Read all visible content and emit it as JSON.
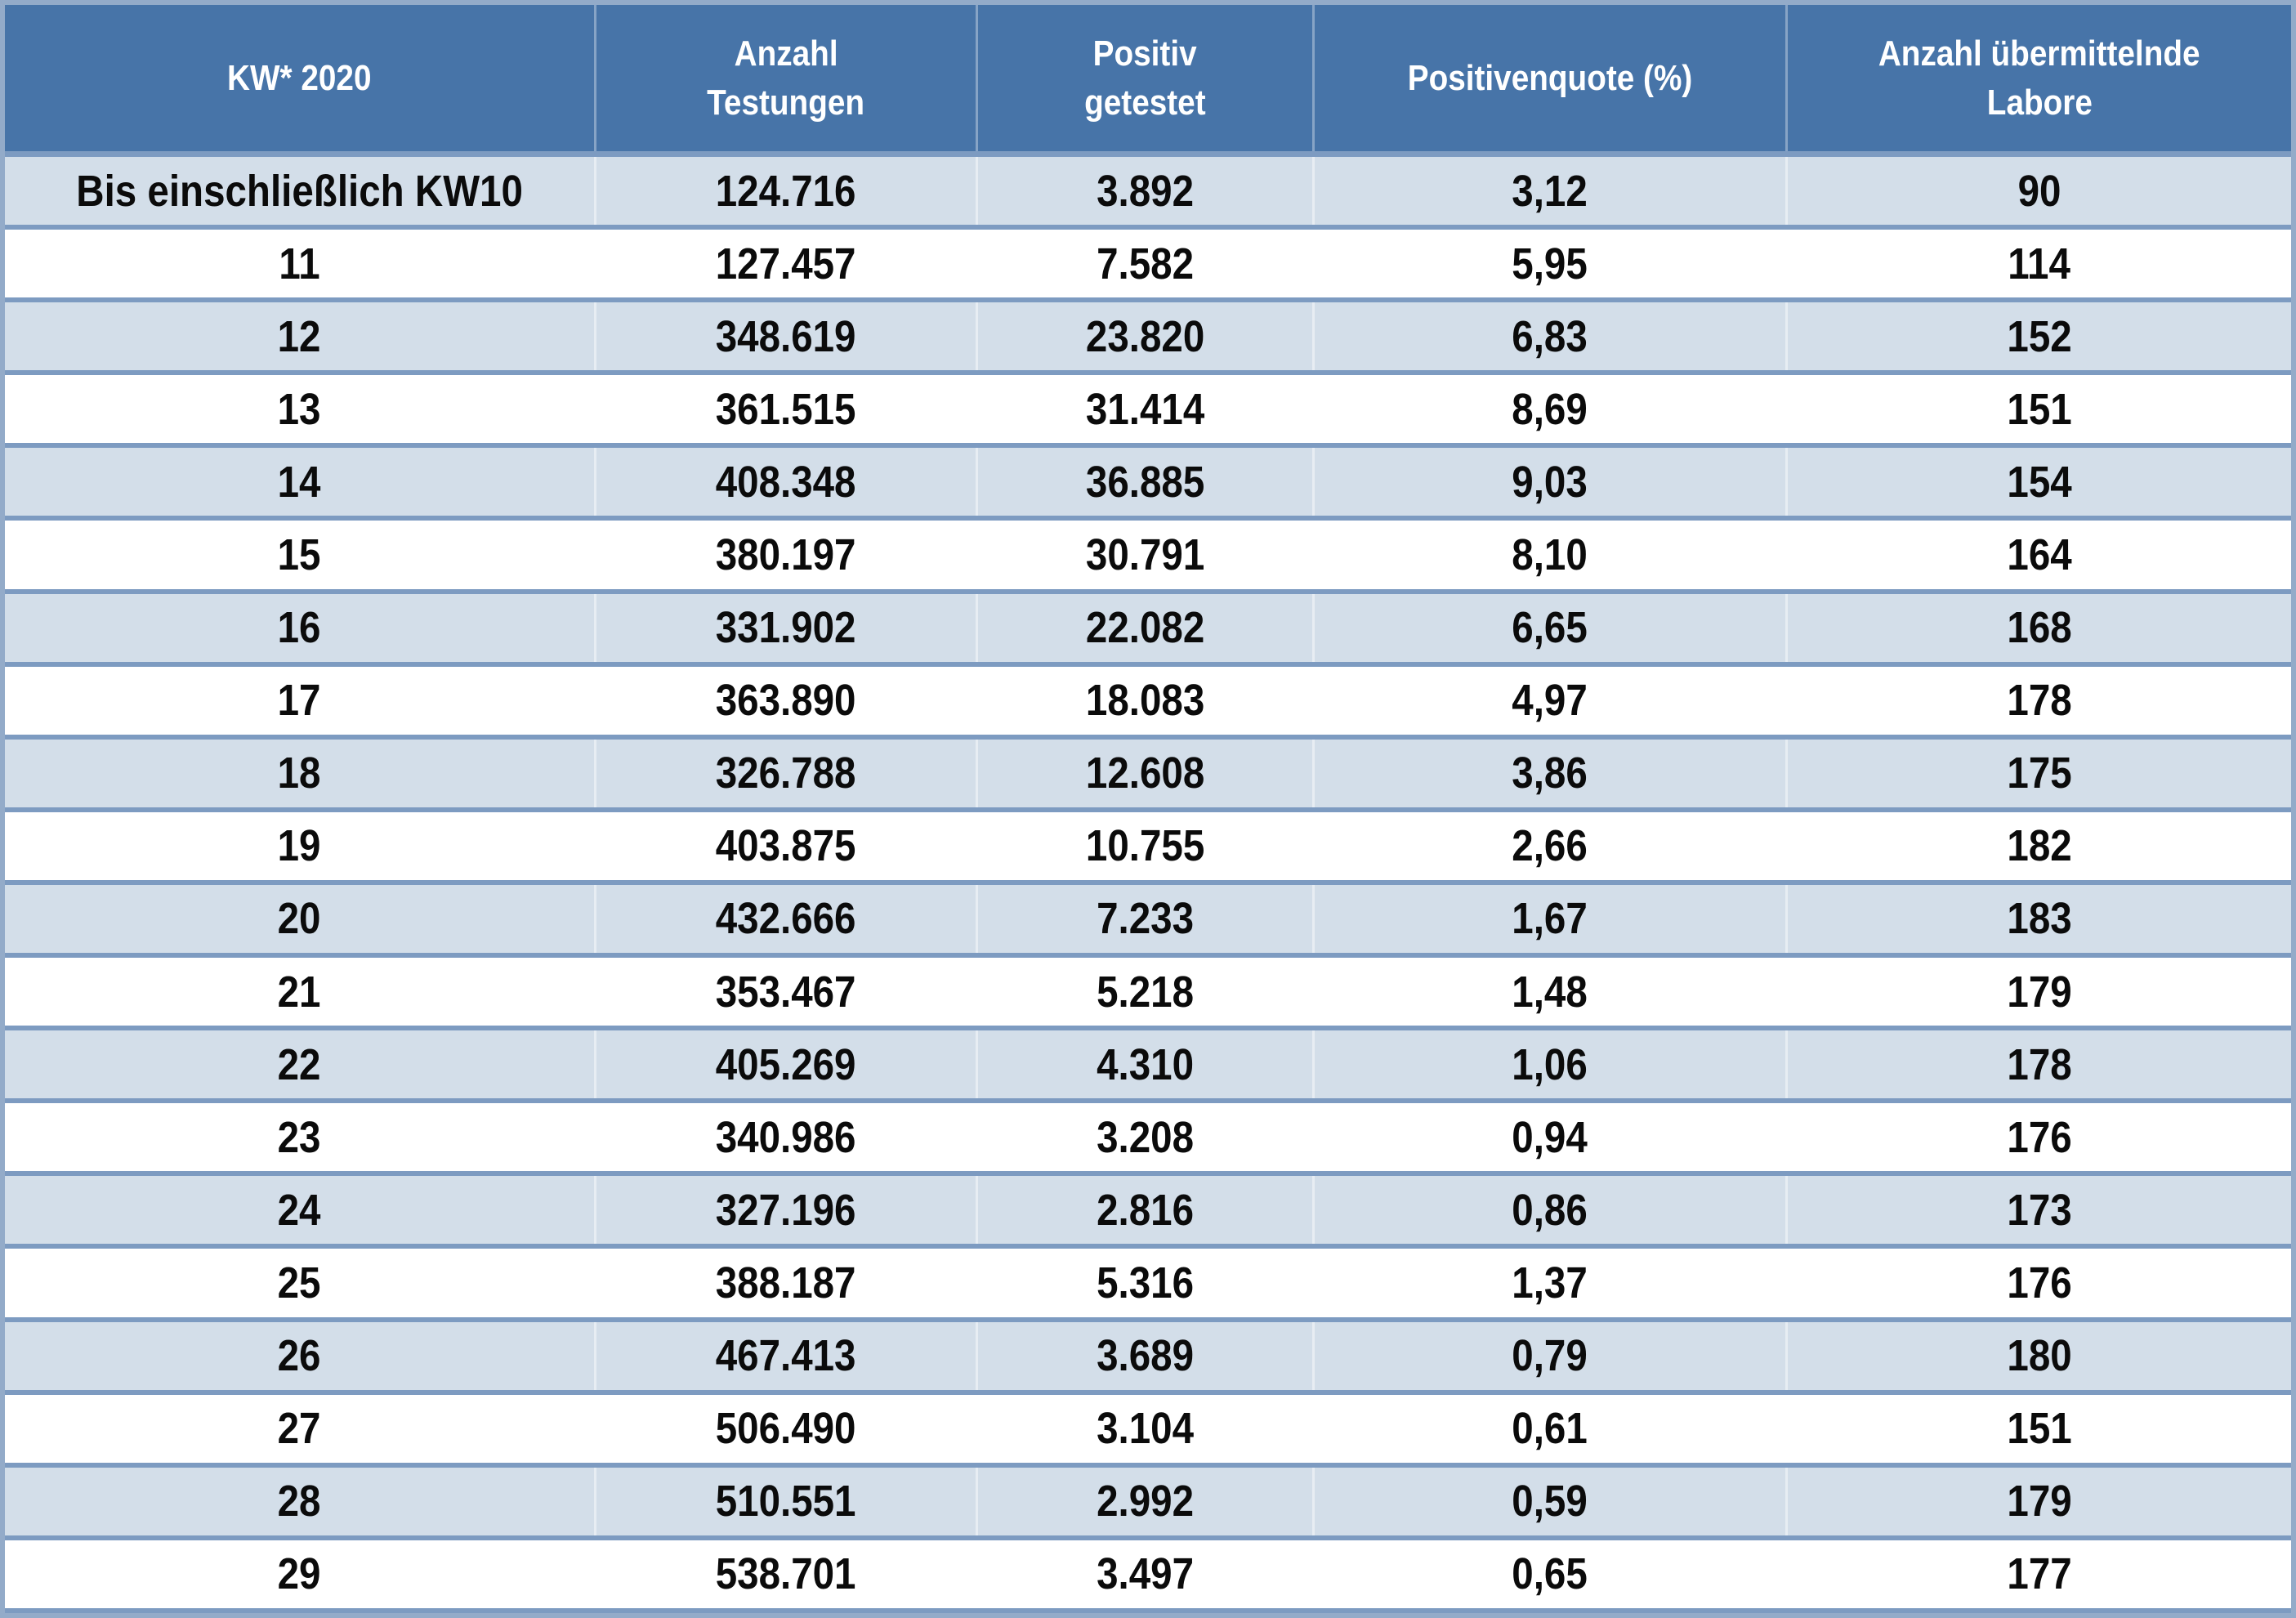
{
  "table": {
    "columns": [
      {
        "key": "kw",
        "label": "KW* 2020",
        "lines": [
          "KW* 2020"
        ]
      },
      {
        "key": "testungen",
        "label": "Anzahl Testungen",
        "lines": [
          "Anzahl",
          "Testungen"
        ]
      },
      {
        "key": "positiv",
        "label": "Positiv getestet",
        "lines": [
          "Positiv",
          "getestet"
        ]
      },
      {
        "key": "quote",
        "label": "Positivenquote (%)",
        "lines": [
          "Positivenquote (%)"
        ]
      },
      {
        "key": "labore",
        "label": "Anzahl übermittelnde Labore",
        "lines": [
          "Anzahl übermittelnde",
          "Labore"
        ]
      }
    ],
    "rows": [
      {
        "kw": "Bis einschließlich KW10",
        "testungen": "124.716",
        "positiv": "3.892",
        "quote": "3,12",
        "labore": "90"
      },
      {
        "kw": "11",
        "testungen": "127.457",
        "positiv": "7.582",
        "quote": "5,95",
        "labore": "114"
      },
      {
        "kw": "12",
        "testungen": "348.619",
        "positiv": "23.820",
        "quote": "6,83",
        "labore": "152"
      },
      {
        "kw": "13",
        "testungen": "361.515",
        "positiv": "31.414",
        "quote": "8,69",
        "labore": "151"
      },
      {
        "kw": "14",
        "testungen": "408.348",
        "positiv": "36.885",
        "quote": "9,03",
        "labore": "154"
      },
      {
        "kw": "15",
        "testungen": "380.197",
        "positiv": "30.791",
        "quote": "8,10",
        "labore": "164"
      },
      {
        "kw": "16",
        "testungen": "331.902",
        "positiv": "22.082",
        "quote": "6,65",
        "labore": "168"
      },
      {
        "kw": "17",
        "testungen": "363.890",
        "positiv": "18.083",
        "quote": "4,97",
        "labore": "178"
      },
      {
        "kw": "18",
        "testungen": "326.788",
        "positiv": "12.608",
        "quote": "3,86",
        "labore": "175"
      },
      {
        "kw": "19",
        "testungen": "403.875",
        "positiv": "10.755",
        "quote": "2,66",
        "labore": "182"
      },
      {
        "kw": "20",
        "testungen": "432.666",
        "positiv": "7.233",
        "quote": "1,67",
        "labore": "183"
      },
      {
        "kw": "21",
        "testungen": "353.467",
        "positiv": "5.218",
        "quote": "1,48",
        "labore": "179"
      },
      {
        "kw": "22",
        "testungen": "405.269",
        "positiv": "4.310",
        "quote": "1,06",
        "labore": "178"
      },
      {
        "kw": "23",
        "testungen": "340.986",
        "positiv": "3.208",
        "quote": "0,94",
        "labore": "176"
      },
      {
        "kw": "24",
        "testungen": "327.196",
        "positiv": "2.816",
        "quote": "0,86",
        "labore": "173"
      },
      {
        "kw": "25",
        "testungen": "388.187",
        "positiv": "5.316",
        "quote": "1,37",
        "labore": "176"
      },
      {
        "kw": "26",
        "testungen": "467.413",
        "positiv": "3.689",
        "quote": "0,79",
        "labore": "180"
      },
      {
        "kw": "27",
        "testungen": "506.490",
        "positiv": "3.104",
        "quote": "0,61",
        "labore": "151"
      },
      {
        "kw": "28",
        "testungen": "510.551",
        "positiv": "2.992",
        "quote": "0,59",
        "labore": "179"
      },
      {
        "kw": "29",
        "testungen": "538.701",
        "positiv": "3.497",
        "quote": "0,65",
        "labore": "177"
      }
    ]
  },
  "colors": {
    "header_bg": "#4774A8",
    "header_text": "#FFFFFF",
    "stripe_bg": "#D3DEE9",
    "row_bg": "#FFFFFF",
    "divider": "#7D9BC1",
    "outer_border": "#93ABC9",
    "body_text": "#0B0B0B"
  },
  "chart_data": {
    "type": "table",
    "columns": [
      "KW* 2020",
      "Anzahl Testungen",
      "Positiv getestet",
      "Positivenquote (%)",
      "Anzahl übermittelnde Labore"
    ],
    "rows": [
      [
        "Bis einschließlich KW10",
        "124.716",
        "3.892",
        "3,12",
        "90"
      ],
      [
        "11",
        "127.457",
        "7.582",
        "5,95",
        "114"
      ],
      [
        "12",
        "348.619",
        "23.820",
        "6,83",
        "152"
      ],
      [
        "13",
        "361.515",
        "31.414",
        "8,69",
        "151"
      ],
      [
        "14",
        "408.348",
        "36.885",
        "9,03",
        "154"
      ],
      [
        "15",
        "380.197",
        "30.791",
        "8,10",
        "164"
      ],
      [
        "16",
        "331.902",
        "22.082",
        "6,65",
        "168"
      ],
      [
        "17",
        "363.890",
        "18.083",
        "4,97",
        "178"
      ],
      [
        "18",
        "326.788",
        "12.608",
        "3,86",
        "175"
      ],
      [
        "19",
        "403.875",
        "10.755",
        "2,66",
        "182"
      ],
      [
        "20",
        "432.666",
        "7.233",
        "1,67",
        "183"
      ],
      [
        "21",
        "353.467",
        "5.218",
        "1,48",
        "179"
      ],
      [
        "22",
        "405.269",
        "4.310",
        "1,06",
        "178"
      ],
      [
        "23",
        "340.986",
        "3.208",
        "0,94",
        "176"
      ],
      [
        "24",
        "327.196",
        "2.816",
        "0,86",
        "173"
      ],
      [
        "25",
        "388.187",
        "5.316",
        "1,37",
        "176"
      ],
      [
        "26",
        "467.413",
        "3.689",
        "0,79",
        "180"
      ],
      [
        "27",
        "506.490",
        "3.104",
        "0,61",
        "151"
      ],
      [
        "28",
        "510.551",
        "2.992",
        "0,59",
        "179"
      ],
      [
        "29",
        "538.701",
        "3.497",
        "0,65",
        "177"
      ]
    ]
  }
}
